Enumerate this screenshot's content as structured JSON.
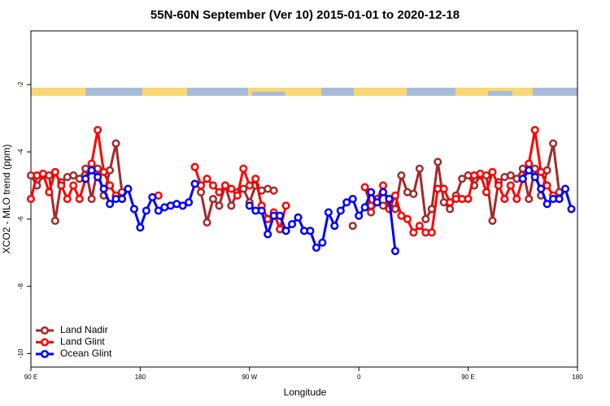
{
  "chart_data": {
    "type": "line",
    "title": "55N-60N September (Ver 10)   2015-01-01 to 2020-12-18",
    "x_label": "Longitude",
    "y_label": "XCO2 - MLO trend (ppm)",
    "xlim": [
      90,
      540
    ],
    "ylim": [
      -10.4,
      -0.4
    ],
    "xticks": [
      {
        "value": 90,
        "label": "90 E"
      },
      180,
      {
        "value": 270,
        "label": "90 W"
      },
      {
        "value": 360,
        "label": "0"
      },
      {
        "value": 450,
        "label": "90 E"
      },
      {
        "value": 540,
        "label": "180"
      }
    ],
    "yticks": [
      -2,
      -4,
      -6,
      -8,
      -10
    ],
    "legend": "bottomleft",
    "x": [
      90,
      95,
      100,
      105,
      110,
      115,
      120,
      125,
      130,
      135,
      140,
      145,
      150,
      155,
      160,
      165,
      170,
      175,
      180,
      185,
      190,
      195,
      200,
      205,
      210,
      215,
      220,
      225,
      230,
      235,
      240,
      245,
      250,
      255,
      260,
      265,
      270,
      275,
      280,
      285,
      290,
      295,
      300,
      305,
      310,
      315,
      320,
      325,
      330,
      335,
      340,
      345,
      350,
      355,
      360,
      365,
      370,
      375,
      380,
      385,
      390,
      395,
      400,
      405,
      410,
      415,
      420,
      425,
      430,
      435,
      440,
      445,
      450,
      455,
      460,
      465,
      470,
      475,
      480,
      485,
      490,
      495,
      500,
      505,
      510,
      515,
      520,
      525,
      530,
      535,
      540
    ],
    "series": [
      {
        "name": "Land Nadir",
        "color": "#a52a2a",
        "values": [
          -4.7,
          -5.0,
          -4.7,
          -4.7,
          -6.05,
          -4.9,
          -4.75,
          -4.7,
          -4.8,
          -4.5,
          -5.4,
          -4.5,
          -5.3,
          -4.55,
          -3.75,
          -5.2,
          null,
          null,
          null,
          null,
          null,
          null,
          null,
          null,
          null,
          null,
          null,
          null,
          -5.2,
          -6.1,
          -5.4,
          -5.6,
          -5.0,
          -5.6,
          -5.2,
          -5.1,
          -5.5,
          -5.0,
          -5.15,
          -5.1,
          -5.15,
          null,
          null,
          null,
          null,
          null,
          null,
          null,
          null,
          null,
          null,
          null,
          null,
          -6.2,
          null,
          null,
          -5.8,
          -5.5,
          -5.6,
          -5.5,
          -5.7,
          -4.7,
          -5.2,
          -5.25,
          -4.5,
          -6.0,
          -5.7,
          -4.3,
          -5.5,
          -5.7,
          -5.3,
          -4.8,
          -4.7,
          -5.0,
          -4.7,
          -4.7,
          -6.05,
          -4.9,
          -4.75,
          -4.7,
          -4.8,
          -4.5,
          -5.4,
          -4.5,
          -5.3,
          -4.55,
          -3.75,
          -5.2,
          null,
          null,
          null
        ]
      },
      {
        "name": "Land Glint",
        "color": "#ff0000",
        "values": [
          -5.4,
          -4.7,
          -4.65,
          -5.2,
          -4.6,
          -5.0,
          -5.4,
          -5.0,
          -5.4,
          -4.8,
          -4.35,
          -3.35,
          -4.6,
          -5.0,
          -5.3,
          -5.4,
          null,
          null,
          null,
          null,
          null,
          -5.3,
          null,
          null,
          null,
          null,
          null,
          -4.45,
          -5.0,
          -4.8,
          -5.0,
          -5.2,
          -5.0,
          -5.1,
          -5.3,
          -4.5,
          -5.0,
          -4.8,
          -5.6,
          -6.0,
          -5.8,
          -6.3,
          -5.6,
          null,
          null,
          null,
          null,
          null,
          null,
          null,
          null,
          null,
          null,
          null,
          null,
          -5.05,
          -5.6,
          -5.4,
          -5.0,
          -5.7,
          -5.3,
          -5.9,
          -6.0,
          -6.4,
          -6.2,
          -6.4,
          -6.4,
          -5.1,
          -5.1,
          -5.5,
          -5.4,
          -5.4,
          -5.4,
          -4.7,
          -4.65,
          -5.2,
          -4.6,
          -5.0,
          -5.4,
          -5.0,
          -5.4,
          -4.8,
          -4.35,
          -3.35,
          -4.6,
          -5.0,
          -5.3,
          -5.4,
          null,
          null,
          null
        ]
      },
      {
        "name": "Ocean Glint",
        "color": "#0000ff",
        "values": [
          null,
          null,
          null,
          null,
          null,
          null,
          null,
          null,
          null,
          -4.8,
          -4.55,
          -4.75,
          -5.1,
          -5.55,
          -5.4,
          -5.4,
          -5.1,
          -5.7,
          -6.25,
          -5.75,
          -5.35,
          -5.75,
          -5.65,
          -5.6,
          -5.55,
          -5.6,
          -5.5,
          -4.95,
          null,
          null,
          null,
          null,
          null,
          null,
          null,
          null,
          -5.6,
          -5.75,
          -5.75,
          -6.45,
          -5.9,
          -5.9,
          -6.35,
          -6.15,
          -5.95,
          -6.35,
          -6.35,
          -6.85,
          -6.7,
          -5.8,
          -6.2,
          -5.75,
          -5.5,
          -5.4,
          -5.9,
          -5.65,
          -5.2,
          -5.5,
          -5.2,
          -5.4,
          -6.95,
          null,
          null,
          null,
          null,
          null,
          null,
          null,
          null,
          null,
          null,
          null,
          null,
          null,
          null,
          null,
          null,
          null,
          null,
          null,
          null,
          -4.8,
          -4.55,
          -4.75,
          -5.1,
          -5.55,
          -5.4,
          -5.4,
          -5.1,
          -5.7,
          null
        ]
      }
    ]
  }
}
